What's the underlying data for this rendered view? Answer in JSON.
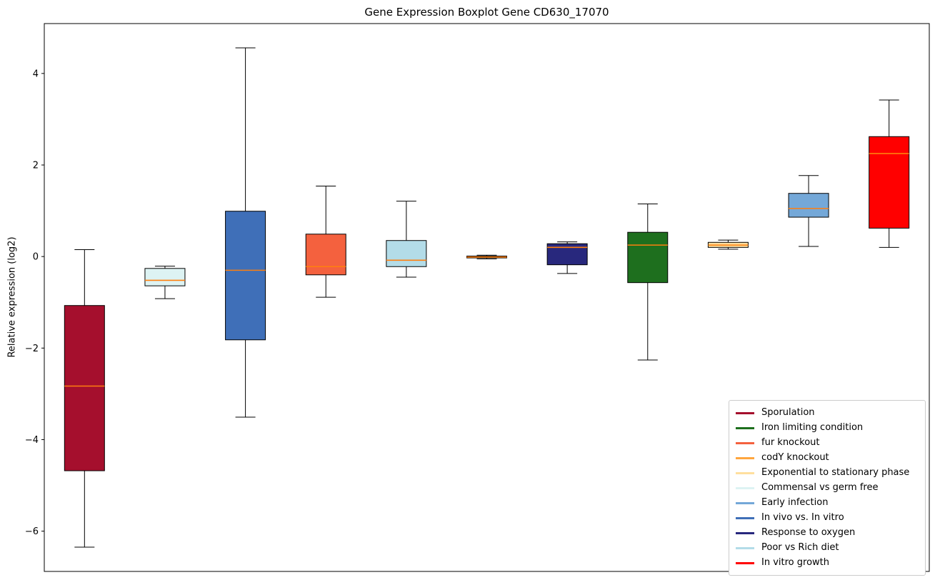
{
  "chart_data": {
    "type": "boxplot",
    "title": "Gene Expression Boxplot Gene CD630_17070",
    "ylabel": "Relative expression (log2)",
    "xlabel": "",
    "ylim": [
      -6.88,
      5.09
    ],
    "yticks": [
      4,
      2,
      0,
      -2,
      -4,
      -6
    ],
    "grid": false,
    "legend_position": "lower right",
    "median_color": "#ff7f0e",
    "whisker_color": "#000000",
    "box_edge_color": "#000000",
    "series": [
      {
        "name": "Sporulation",
        "color": "#a50f2d",
        "whislo": -6.35,
        "q1": -4.68,
        "med": -2.83,
        "q3": -1.07,
        "whishi": 0.15
      },
      {
        "name": "Commensal vs germ free",
        "color": "#ddf3f3",
        "whislo": -0.92,
        "q1": -0.64,
        "med": -0.52,
        "q3": -0.26,
        "whishi": -0.21
      },
      {
        "name": "In vivo vs. In vitro",
        "color": "#3f6fb8",
        "whislo": -3.51,
        "q1": -1.82,
        "med": -0.3,
        "q3": 0.99,
        "whishi": 4.56
      },
      {
        "name": "fur knockout",
        "color": "#f4613e",
        "whislo": -0.89,
        "q1": -0.4,
        "med": -0.22,
        "q3": 0.49,
        "whishi": 1.54
      },
      {
        "name": "Poor vs Rich diet",
        "color": "#b3dce8",
        "whislo": -0.45,
        "q1": -0.22,
        "med": -0.08,
        "q3": 0.35,
        "whishi": 1.21
      },
      {
        "name": "codY knockout",
        "color": "#ffa63e",
        "whislo": -0.05,
        "q1": -0.03,
        "med": -0.01,
        "q3": 0.01,
        "whishi": 0.03
      },
      {
        "name": "Response to oxygen",
        "color": "#28287d",
        "whislo": -0.37,
        "q1": -0.18,
        "med": 0.2,
        "q3": 0.28,
        "whishi": 0.32
      },
      {
        "name": "Iron limiting condition",
        "color": "#1e6f1e",
        "whislo": -2.26,
        "q1": -0.57,
        "med": 0.25,
        "q3": 0.53,
        "whishi": 1.15
      },
      {
        "name": "Exponential to stationary phase",
        "color": "#ffdf9e",
        "whislo": 0.16,
        "q1": 0.2,
        "med": 0.25,
        "q3": 0.31,
        "whishi": 0.36
      },
      {
        "name": "Early infection",
        "color": "#74a8d8",
        "whislo": 0.22,
        "q1": 0.86,
        "med": 1.05,
        "q3": 1.38,
        "whishi": 1.77
      },
      {
        "name": "In vitro growth",
        "color": "#ff0000",
        "whislo": 0.2,
        "q1": 0.62,
        "med": 2.25,
        "q3": 2.62,
        "whishi": 3.42
      }
    ],
    "legend": [
      {
        "label": "Sporulation",
        "color": "#a50f2d"
      },
      {
        "label": "Iron limiting condition",
        "color": "#1e6f1e"
      },
      {
        "label": "fur knockout",
        "color": "#f4613e"
      },
      {
        "label": "codY knockout",
        "color": "#ffa63e"
      },
      {
        "label": "Exponential to stationary phase",
        "color": "#ffdf9e"
      },
      {
        "label": "Commensal vs germ free",
        "color": "#ddf3f3"
      },
      {
        "label": "Early infection",
        "color": "#74a8d8"
      },
      {
        "label": "In vivo vs. In vitro",
        "color": "#3f6fb8"
      },
      {
        "label": "Response to oxygen",
        "color": "#28287d"
      },
      {
        "label": "Poor vs Rich diet",
        "color": "#b3dce8"
      },
      {
        "label": "In vitro growth",
        "color": "#ff0000"
      }
    ]
  }
}
